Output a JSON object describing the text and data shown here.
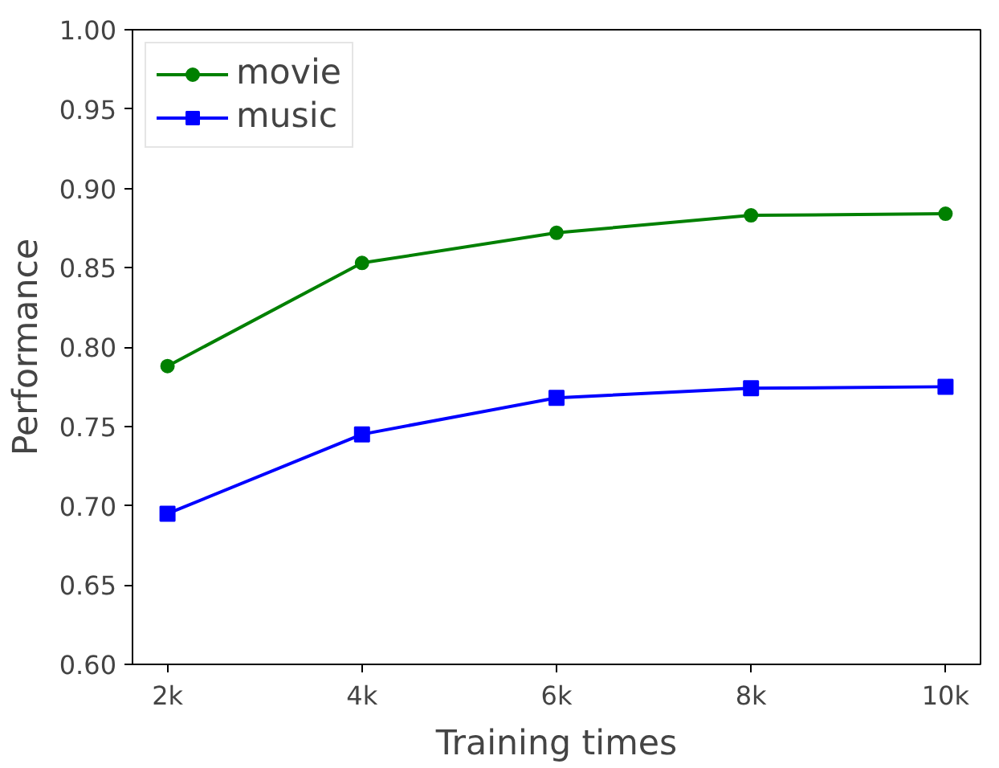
{
  "chart_data": {
    "type": "line",
    "xlabel": "Training times",
    "ylabel": "Performance",
    "categories": [
      "2k",
      "4k",
      "6k",
      "8k",
      "10k"
    ],
    "series": [
      {
        "name": "movie",
        "color": "#008000",
        "marker": "circle",
        "values": [
          0.788,
          0.853,
          0.872,
          0.883,
          0.884
        ]
      },
      {
        "name": "music",
        "color": "#0000ff",
        "marker": "square",
        "values": [
          0.695,
          0.745,
          0.768,
          0.774,
          0.775
        ]
      }
    ],
    "ylim": [
      0.6,
      1.0
    ],
    "yticks": [
      {
        "value": 0.6,
        "label": "0.60"
      },
      {
        "value": 0.65,
        "label": "0.65"
      },
      {
        "value": 0.7,
        "label": "0.70"
      },
      {
        "value": 0.75,
        "label": "0.75"
      },
      {
        "value": 0.8,
        "label": "0.80"
      },
      {
        "value": 0.85,
        "label": "0.85"
      },
      {
        "value": 0.9,
        "label": "0.90"
      },
      {
        "value": 0.95,
        "label": "0.95"
      },
      {
        "value": 1.0,
        "label": "1.00"
      }
    ],
    "grid": false,
    "legend": "top left",
    "line_style": "solid"
  }
}
